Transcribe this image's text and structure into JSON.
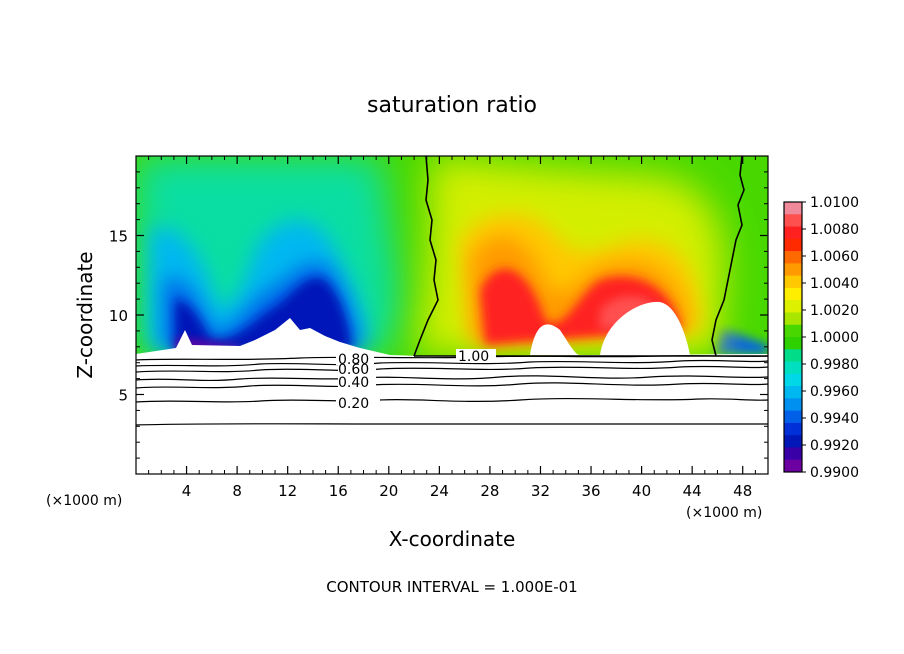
{
  "chart_data": {
    "type": "heatmap",
    "title": "saturation ratio",
    "xlabel": "X-coordinate",
    "ylabel": "Z-coordinate",
    "x_unit_left": "(×1000 m)",
    "x_unit_right": "(×1000 m)",
    "xlim": [
      0,
      50
    ],
    "ylim": [
      0,
      20
    ],
    "xticks": [
      4,
      8,
      12,
      16,
      20,
      24,
      28,
      32,
      36,
      40,
      44,
      48
    ],
    "yticks": [
      5,
      10,
      15
    ],
    "footer": "CONTOUR INTERVAL = 1.000E-01",
    "colorbar": {
      "min": 0.99,
      "max": 1.01,
      "labels": [
        "1.0100",
        "1.0080",
        "1.0060",
        "1.0040",
        "1.0020",
        "1.0000",
        "0.9980",
        "0.9960",
        "0.9940",
        "0.9920",
        "0.9900"
      ],
      "colors": [
        "#f08a9a",
        "#ff5050",
        "#ff2020",
        "#ff2a00",
        "#ff6a00",
        "#ff9a00",
        "#ffc800",
        "#ffee00",
        "#dcf000",
        "#a8e600",
        "#48d800",
        "#2ed000",
        "#00dc88",
        "#00e0c0",
        "#00d8e8",
        "#00b8f0",
        "#0090f0",
        "#0060e8",
        "#0030d8",
        "#0018b8",
        "#3a00a8",
        "#6c00a0"
      ]
    },
    "contour_labels": [
      "0.80",
      "0.60",
      "0.40",
      "0.20",
      "1.00"
    ],
    "contour_levels": [
      0.2,
      0.4,
      0.6,
      0.8,
      1.0
    ],
    "colors": {
      "boundary_line": "#000000",
      "unsaturated_region": "#ffffff",
      "neutral": "#48d800",
      "supersaturated": "#ff2020",
      "subsaturated": "#0030d8"
    }
  }
}
